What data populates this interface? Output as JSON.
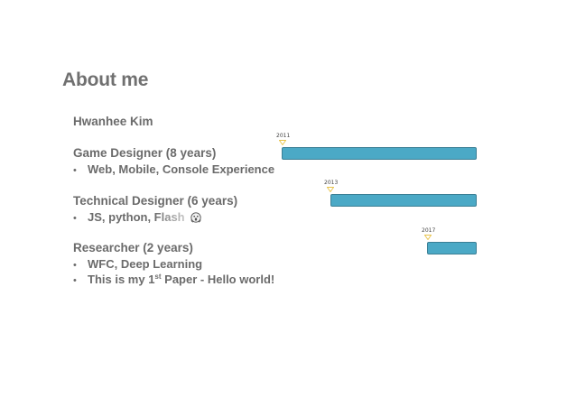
{
  "title": "About me",
  "name": "Hwanhee Kim",
  "roles": [
    {
      "title": "Game Designer (8 years)",
      "bullets": [
        "Web, Mobile, Console Experience"
      ],
      "start_year": "2011"
    },
    {
      "title": "Technical Designer (6 years)",
      "bullet_main": "JS, python, ",
      "bullet_faded": "Flash",
      "start_year": "2013"
    },
    {
      "title": "Researcher (2 years)",
      "bullets": [
        "WFC, Deep Learning"
      ],
      "paper_prefix": "This is my 1",
      "paper_sup": "st",
      "paper_suffix": " Paper - Hello world!",
      "start_year": "2017"
    }
  ],
  "bullet_symbol": "•",
  "colors": {
    "bar_fill": "#4ba9c6",
    "bar_border": "#3b7f95",
    "marker": "#e8c34a",
    "text": "#6b6b6b"
  },
  "icons": {
    "scared": "screaming-face-icon"
  }
}
